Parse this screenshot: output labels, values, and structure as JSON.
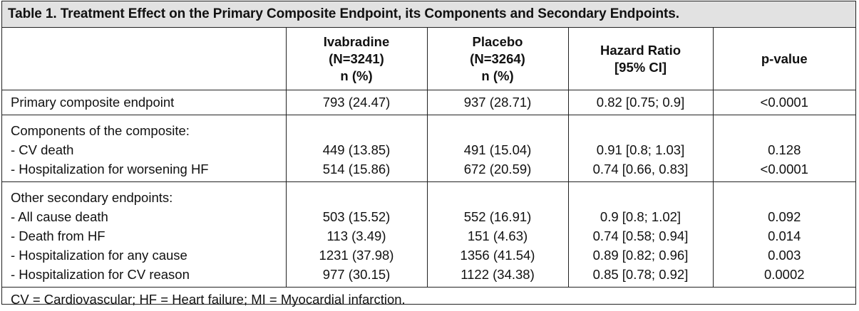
{
  "table": {
    "caption": "Table 1. Treatment Effect on the Primary Composite Endpoint, its Components and Secondary Endpoints.",
    "headers": [
      {
        "lines": [
          ""
        ]
      },
      {
        "lines": [
          "Ivabradine",
          "(N=3241)",
          "n (%)"
        ]
      },
      {
        "lines": [
          "Placebo",
          "(N=3264)",
          "n (%)"
        ]
      },
      {
        "lines": [
          "Hazard Ratio",
          "[95% CI]"
        ]
      },
      {
        "lines": [
          "p-value"
        ]
      }
    ],
    "primary": {
      "label": "Primary composite endpoint",
      "ivabradine": "793 (24.47)",
      "placebo": "937 (28.71)",
      "hr": "0.82 [0.75; 0.9]",
      "p": "<0.0001"
    },
    "components": {
      "title": "Components of the composite:",
      "rows": [
        {
          "label": "- CV death",
          "ivabradine": "449 (13.85)",
          "placebo": "491 (15.04)",
          "hr": "0.91 [0.8; 1.03]",
          "p": "0.128"
        },
        {
          "label": "- Hospitalization for worsening HF",
          "ivabradine": "514 (15.86)",
          "placebo": "672 (20.59)",
          "hr": "0.74 [0.66, 0.83]",
          "p": "<0.0001"
        }
      ]
    },
    "secondary": {
      "title": "Other secondary endpoints:",
      "rows": [
        {
          "label": "- All cause death",
          "ivabradine": "503 (15.52)",
          "placebo": "552 (16.91)",
          "hr": "0.9 [0.8; 1.02]",
          "p": "0.092"
        },
        {
          "label": "- Death from HF",
          "ivabradine": "113 (3.49)",
          "placebo": "151 (4.63)",
          "hr": "0.74 [0.58; 0.94]",
          "p": "0.014"
        },
        {
          "label": "- Hospitalization for any cause",
          "ivabradine": "1231 (37.98)",
          "placebo": "1356 (41.54)",
          "hr": "0.89 [0.82; 0.96]",
          "p": "0.003"
        },
        {
          "label": "- Hospitalization for CV reason",
          "ivabradine": "977 (30.15)",
          "placebo": "1122 (34.38)",
          "hr": "0.85 [0.78; 0.92]",
          "p": "0.0002"
        }
      ]
    },
    "footnote": "CV = Cardiovascular; HF = Heart failure; MI = Myocardial infarction."
  }
}
